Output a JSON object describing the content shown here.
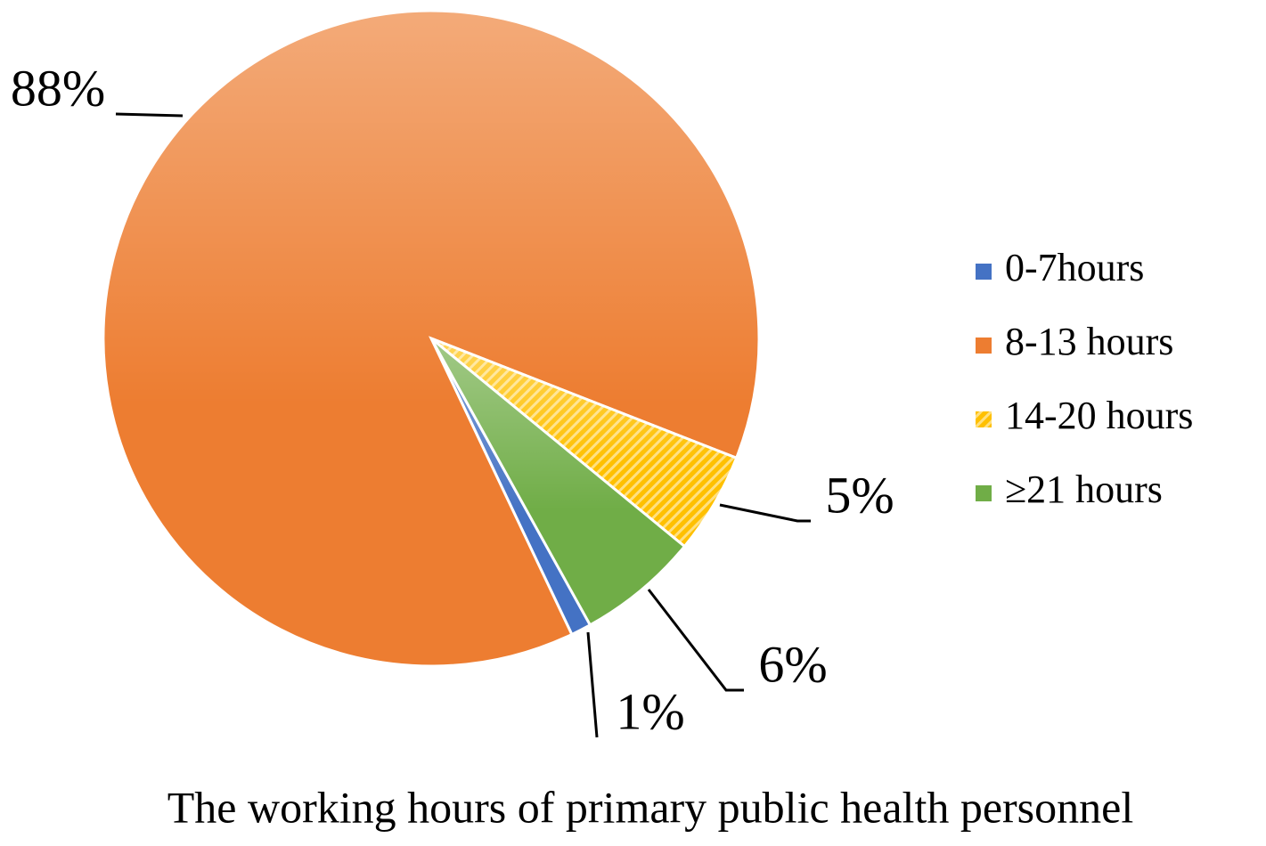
{
  "chart_data": {
    "type": "pie",
    "title": "The working hours of primary public health personnel",
    "categories": [
      "0-7hours",
      "8-13 hours",
      "14-20 hours",
      "≥21 hours"
    ],
    "values": [
      1,
      88,
      5,
      6
    ],
    "value_labels": [
      "1%",
      "88%",
      "5%",
      "6%"
    ],
    "colors": [
      "#4472c4",
      "#ed7d31",
      "#ffc000",
      "#70ad47"
    ],
    "legend": "right"
  }
}
